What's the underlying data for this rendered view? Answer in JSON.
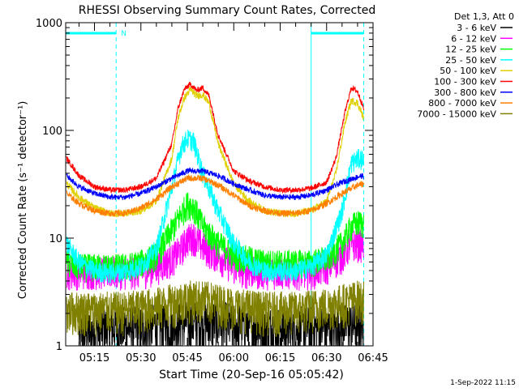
{
  "chart_data": {
    "type": "line",
    "title": "RHESSI Observing Summary Count Rates, Corrected",
    "xlabel": "Start Time (20-Sep-16 05:05:42)",
    "ylabel": "Corrected Count Rate (s⁻¹ detector⁻¹)",
    "y_scale": "log",
    "ylim": [
      1,
      1000
    ],
    "xlim": [
      "05:05:42",
      "06:45:00"
    ],
    "x_ticks": [
      "05:15",
      "05:30",
      "05:45",
      "06:00",
      "06:15",
      "06:30",
      "06:45"
    ],
    "y_ticks": [
      "1",
      "10",
      "100",
      "1000"
    ],
    "timestamp": "1-Sep-2022 11:15",
    "legend": {
      "position": "top-right",
      "header": "Det 1,3, Att 0",
      "entries": [
        {
          "label": "3 - 6 keV",
          "color": "#000000"
        },
        {
          "label": "6 - 12 keV",
          "color": "#ff00ff"
        },
        {
          "label": "12 - 25 keV",
          "color": "#00ff00"
        },
        {
          "label": "25 - 50 keV",
          "color": "#00ffff"
        },
        {
          "label": "50 - 100 keV",
          "color": "#e0d000"
        },
        {
          "label": "100 - 300 keV",
          "color": "#ff0000"
        },
        {
          "label": "300 - 800 keV",
          "color": "#0000ff"
        },
        {
          "label": "800 - 7000 keV",
          "color": "#ff8000"
        },
        {
          "label": "7000 - 15000 keV",
          "color": "#808000"
        }
      ]
    },
    "night_intervals": [
      {
        "start": "05:05:42",
        "end": "05:22:00",
        "label": "N"
      },
      {
        "start": "06:25:00",
        "end": "06:42:00",
        "label": ""
      }
    ],
    "series": [
      {
        "name": "3 - 6 keV",
        "color": "#000000",
        "x": [
          "05:10",
          "05:15",
          "05:20",
          "05:25",
          "05:30",
          "05:35",
          "05:40",
          "05:45",
          "05:50",
          "05:55",
          "06:00",
          "06:05",
          "06:10",
          "06:15",
          "06:20",
          "06:25",
          "06:30",
          "06:35",
          "06:40",
          "06:42"
        ],
        "values": [
          1.3,
          1.4,
          1.5,
          1.5,
          1.5,
          1.6,
          1.6,
          1.7,
          1.7,
          1.7,
          1.6,
          1.6,
          1.5,
          1.5,
          1.5,
          1.5,
          1.5,
          1.6,
          1.6,
          1.6
        ]
      },
      {
        "name": "6 - 12 keV",
        "color": "#ff00ff",
        "x": [
          "05:06",
          "05:10",
          "05:15",
          "05:20",
          "05:25",
          "05:30",
          "05:35",
          "05:40",
          "05:43",
          "05:45",
          "05:47",
          "05:50",
          "05:55",
          "06:00",
          "06:05",
          "06:10",
          "06:15",
          "06:20",
          "06:25",
          "06:30",
          "06:35",
          "06:38",
          "06:40",
          "06:42"
        ],
        "values": [
          5,
          5,
          5,
          5,
          5,
          5,
          5.5,
          6.5,
          8,
          10,
          10.5,
          8.5,
          7,
          5.5,
          5,
          5,
          5,
          5,
          5,
          5.5,
          7,
          9,
          9,
          9
        ]
      },
      {
        "name": "12 - 25 keV",
        "color": "#00ff00",
        "x": [
          "05:06",
          "05:10",
          "05:15",
          "05:20",
          "05:25",
          "05:30",
          "05:35",
          "05:40",
          "05:43",
          "05:45",
          "05:47",
          "05:50",
          "05:55",
          "06:00",
          "06:05",
          "06:10",
          "06:15",
          "06:20",
          "06:25",
          "06:30",
          "06:35",
          "06:38",
          "06:40",
          "06:42"
        ],
        "values": [
          6,
          5.5,
          5.5,
          5.5,
          5.5,
          6,
          7,
          12,
          17,
          21,
          20,
          13,
          9,
          7,
          6.5,
          6,
          6,
          6,
          6,
          6.5,
          9,
          13,
          14,
          14
        ]
      },
      {
        "name": "25 - 50 keV",
        "color": "#00ffff",
        "x": [
          "05:06",
          "05:10",
          "05:15",
          "05:20",
          "05:25",
          "05:30",
          "05:35",
          "05:40",
          "05:43",
          "05:45",
          "05:47",
          "05:50",
          "05:55",
          "06:00",
          "06:05",
          "06:10",
          "06:15",
          "06:20",
          "06:25",
          "06:30",
          "06:35",
          "06:38",
          "06:40",
          "06:42"
        ],
        "values": [
          9,
          6,
          5,
          4.8,
          5,
          5.5,
          8,
          30,
          70,
          85,
          80,
          40,
          18,
          9,
          6,
          5,
          5,
          5,
          5.5,
          7,
          18,
          50,
          55,
          55
        ]
      },
      {
        "name": "50 - 100 keV",
        "color": "#e0d000",
        "x": [
          "05:06",
          "05:10",
          "05:15",
          "05:20",
          "05:25",
          "05:30",
          "05:35",
          "05:40",
          "05:42",
          "05:44",
          "05:46",
          "05:48",
          "05:50",
          "05:52",
          "05:55",
          "06:00",
          "06:05",
          "06:10",
          "06:15",
          "06:20",
          "06:25",
          "06:30",
          "06:33",
          "06:36",
          "06:38",
          "06:40",
          "06:42"
        ],
        "values": [
          32,
          24,
          19,
          17,
          17,
          18,
          22,
          55,
          130,
          200,
          240,
          210,
          215,
          180,
          75,
          32,
          22,
          18,
          17,
          17,
          18,
          22,
          40,
          120,
          190,
          180,
          130
        ]
      },
      {
        "name": "100 - 300 keV",
        "color": "#ff0000",
        "x": [
          "05:06",
          "05:10",
          "05:15",
          "05:20",
          "05:25",
          "05:30",
          "05:35",
          "05:40",
          "05:42",
          "05:44",
          "05:46",
          "05:48",
          "05:50",
          "05:52",
          "05:55",
          "06:00",
          "06:05",
          "06:10",
          "06:15",
          "06:20",
          "06:25",
          "06:30",
          "06:33",
          "06:36",
          "06:38",
          "06:40",
          "06:42"
        ],
        "values": [
          55,
          38,
          30,
          28,
          28,
          30,
          36,
          75,
          160,
          240,
          270,
          235,
          250,
          210,
          90,
          42,
          34,
          30,
          28,
          28,
          29,
          33,
          55,
          150,
          250,
          230,
          160
        ]
      },
      {
        "name": "300 - 800 keV",
        "color": "#0000ff",
        "x": [
          "05:06",
          "05:10",
          "05:15",
          "05:20",
          "05:25",
          "05:30",
          "05:35",
          "05:40",
          "05:45",
          "05:50",
          "05:55",
          "06:00",
          "06:05",
          "06:10",
          "06:15",
          "06:20",
          "06:25",
          "06:30",
          "06:35",
          "06:40",
          "06:42"
        ],
        "values": [
          38,
          30,
          26,
          24,
          24,
          26,
          30,
          36,
          42,
          42,
          38,
          32,
          28,
          25,
          24,
          24,
          25,
          28,
          33,
          37,
          38
        ]
      },
      {
        "name": "800 - 7000 keV",
        "color": "#ff8000",
        "x": [
          "05:06",
          "05:10",
          "05:15",
          "05:20",
          "05:25",
          "05:30",
          "05:35",
          "05:40",
          "05:45",
          "05:50",
          "05:55",
          "06:00",
          "06:05",
          "06:10",
          "06:15",
          "06:20",
          "06:25",
          "06:30",
          "06:35",
          "06:40",
          "06:42"
        ],
        "values": [
          26,
          21,
          18,
          17,
          17,
          19,
          23,
          30,
          36,
          36,
          31,
          25,
          20,
          18,
          17,
          17,
          18,
          21,
          26,
          31,
          32
        ]
      },
      {
        "name": "7000 - 15000 keV",
        "color": "#808000",
        "x": [
          "05:06",
          "05:10",
          "05:15",
          "05:20",
          "05:25",
          "05:30",
          "05:35",
          "05:40",
          "05:45",
          "05:50",
          "05:55",
          "06:00",
          "06:05",
          "06:10",
          "06:15",
          "06:20",
          "06:25",
          "06:30",
          "06:35",
          "06:40",
          "06:42"
        ],
        "values": [
          2.2,
          2.2,
          2.2,
          2.2,
          2.2,
          2.3,
          2.4,
          2.6,
          2.8,
          2.8,
          2.6,
          2.4,
          2.3,
          2.2,
          2.2,
          2.2,
          2.3,
          2.4,
          2.6,
          2.8,
          2.8
        ]
      }
    ]
  }
}
